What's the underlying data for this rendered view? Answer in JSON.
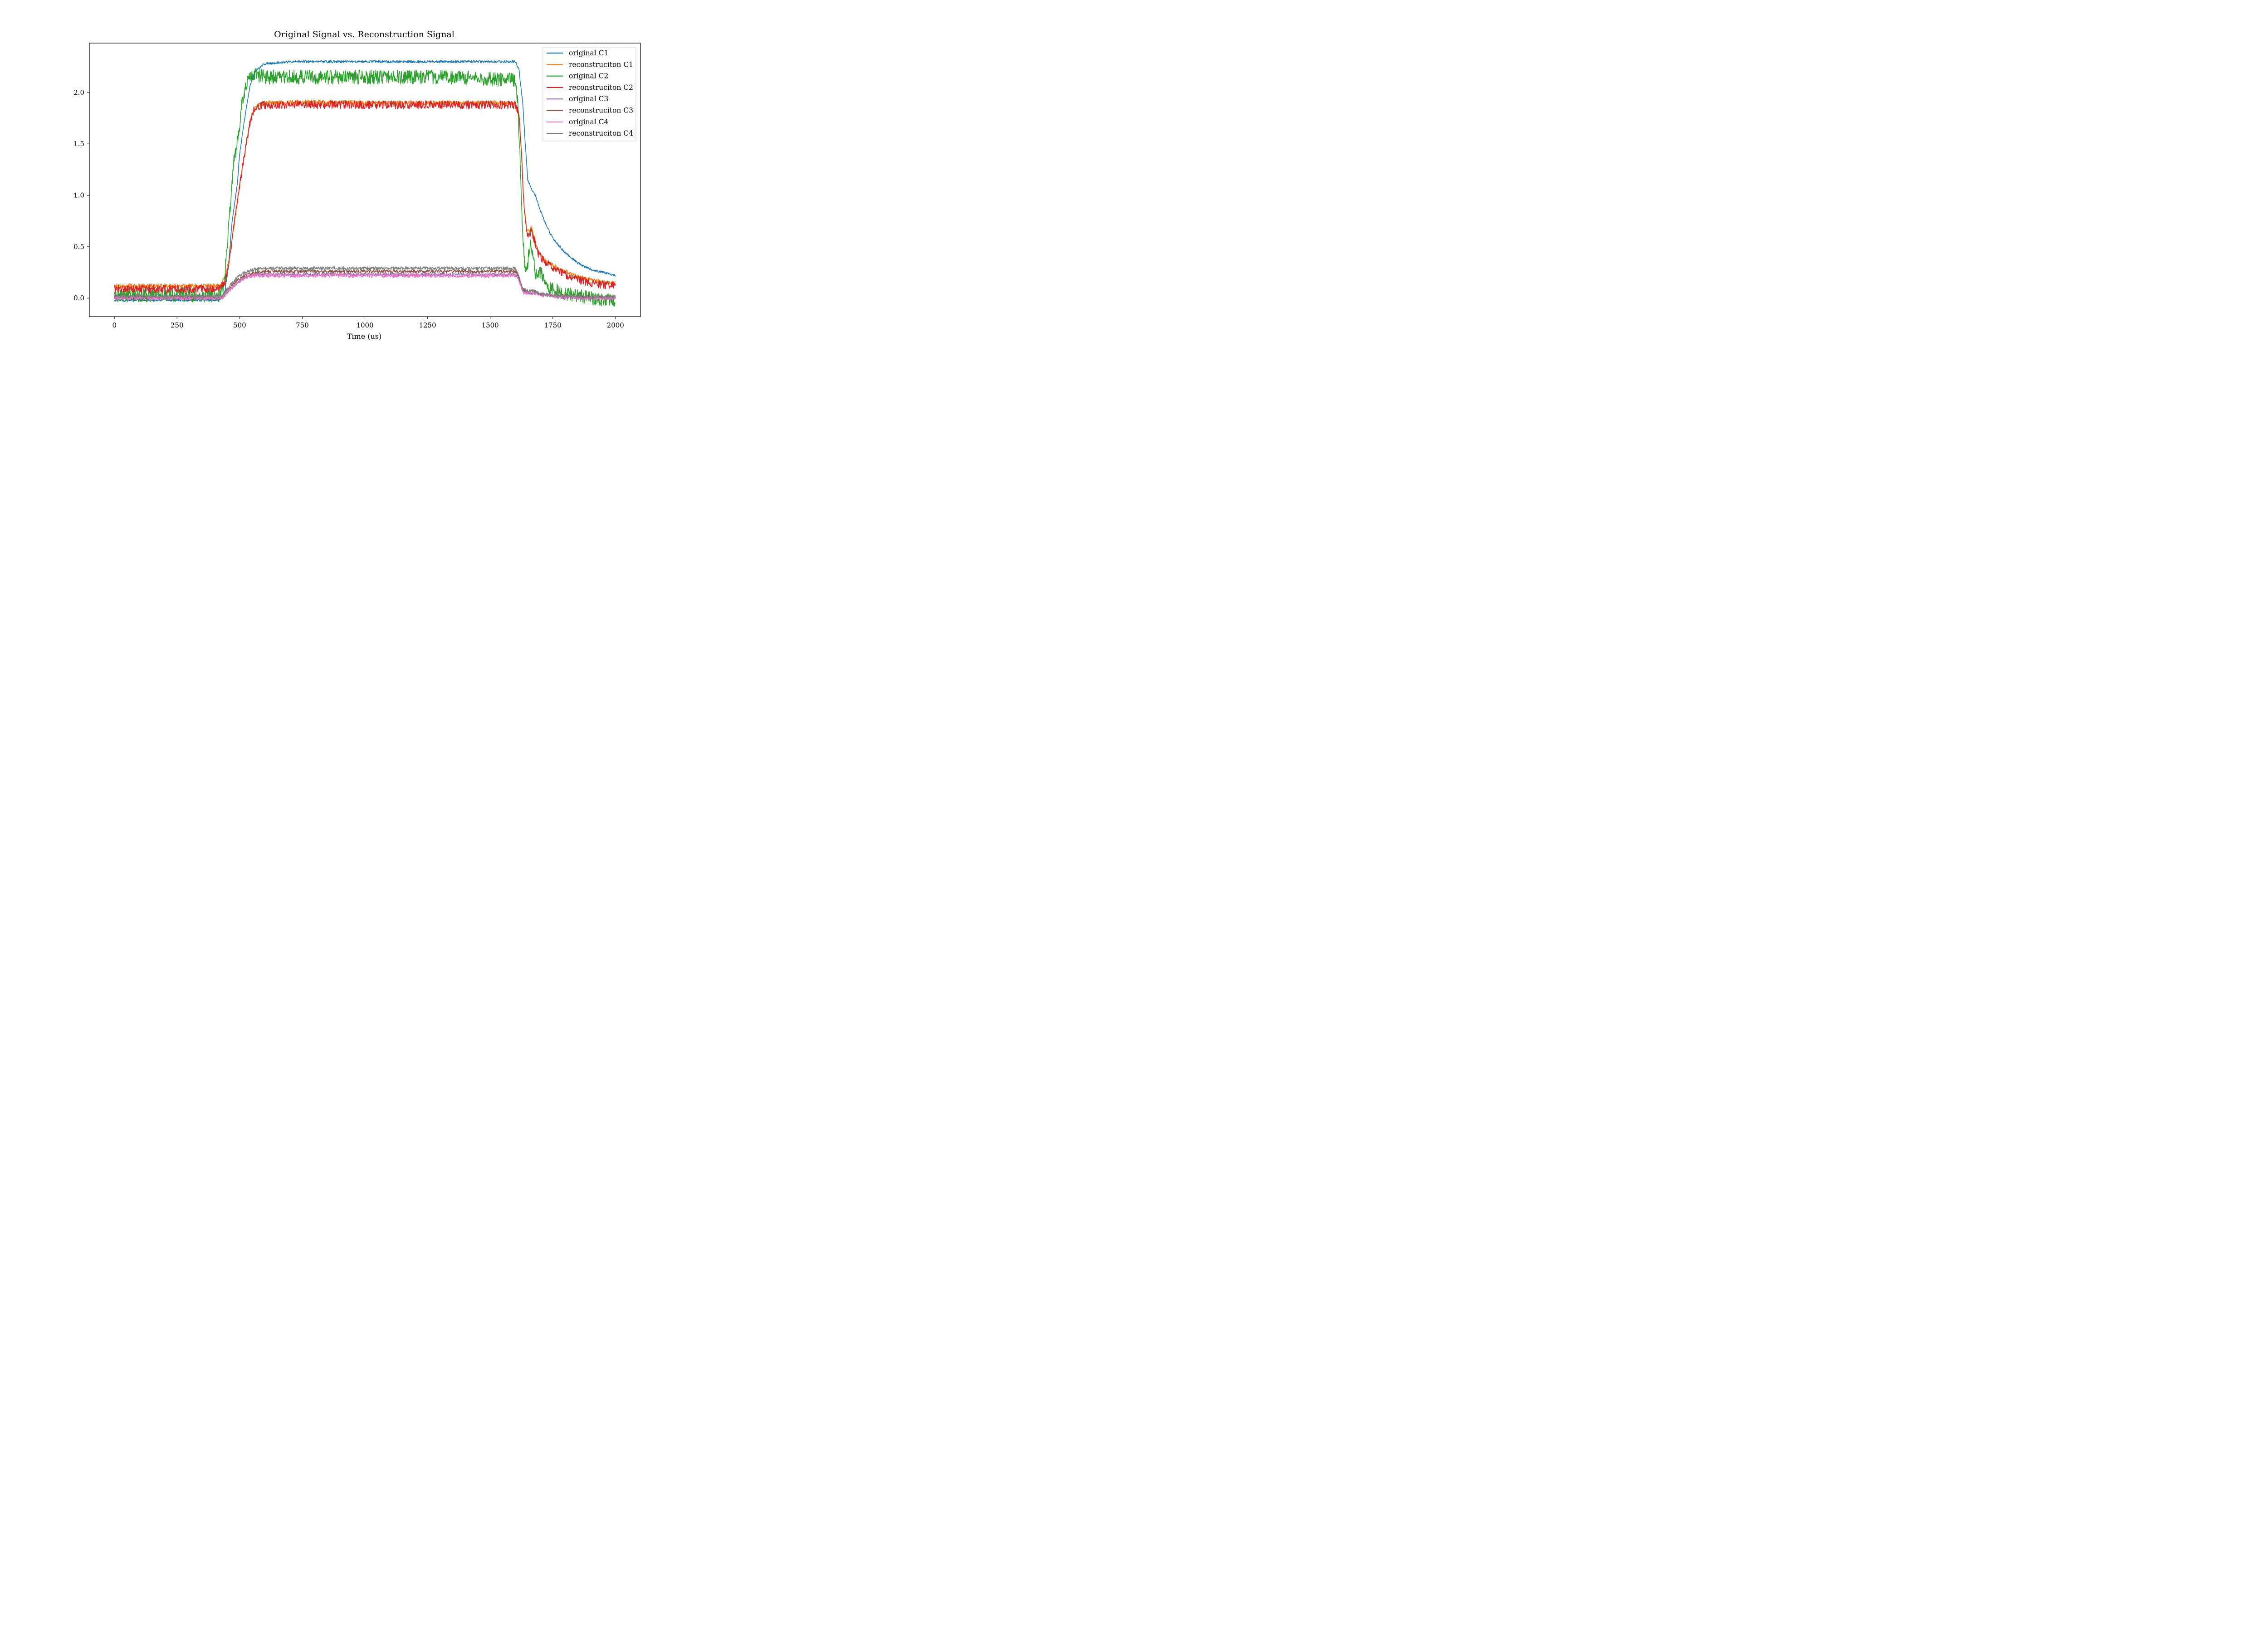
{
  "chart_data": {
    "type": "line",
    "title": "Original Signal vs. Reconstruction Signal",
    "xlabel": "Time (us)",
    "ylabel": "",
    "xlim": [
      -100,
      2100
    ],
    "ylim": [
      -0.18,
      2.48
    ],
    "x_ticks": [
      0,
      250,
      500,
      750,
      1000,
      1250,
      1500,
      1750,
      2000
    ],
    "x_tick_labels": [
      "0",
      "250",
      "500",
      "750",
      "1000",
      "1250",
      "1500",
      "1750",
      "2000"
    ],
    "y_ticks": [
      0.0,
      0.5,
      1.0,
      1.5,
      2.0
    ],
    "y_tick_labels": [
      "0.0",
      "0.5",
      "1.0",
      "1.5",
      "2.0"
    ],
    "grid": false,
    "legend_position": "top-right",
    "series": [
      {
        "name": "original C1",
        "color": "#1f77b4",
        "points": [
          [
            0,
            -0.02
          ],
          [
            420,
            -0.02
          ],
          [
            440,
            0.05
          ],
          [
            455,
            0.3
          ],
          [
            470,
            0.75
          ],
          [
            490,
            1.1
          ],
          [
            500,
            1.4
          ],
          [
            520,
            1.75
          ],
          [
            540,
            2.05
          ],
          [
            560,
            2.2
          ],
          [
            600,
            2.28
          ],
          [
            700,
            2.3
          ],
          [
            1000,
            2.3
          ],
          [
            1300,
            2.3
          ],
          [
            1600,
            2.3
          ],
          [
            1615,
            2.22
          ],
          [
            1630,
            1.9
          ],
          [
            1640,
            1.5
          ],
          [
            1650,
            1.15
          ],
          [
            1665,
            1.06
          ],
          [
            1680,
            1.0
          ],
          [
            1700,
            0.85
          ],
          [
            1725,
            0.7
          ],
          [
            1750,
            0.58
          ],
          [
            1800,
            0.44
          ],
          [
            1850,
            0.34
          ],
          [
            1900,
            0.28
          ],
          [
            1950,
            0.25
          ],
          [
            2000,
            0.22
          ]
        ]
      },
      {
        "name": "reconstruciton C1",
        "color": "#ff7f0e",
        "points": [
          [
            0,
            0.12
          ],
          [
            420,
            0.12
          ],
          [
            440,
            0.2
          ],
          [
            460,
            0.4
          ],
          [
            480,
            0.75
          ],
          [
            500,
            1.1
          ],
          [
            520,
            1.4
          ],
          [
            540,
            1.7
          ],
          [
            560,
            1.86
          ],
          [
            600,
            1.9
          ],
          [
            800,
            1.91
          ],
          [
            1000,
            1.9
          ],
          [
            1300,
            1.9
          ],
          [
            1600,
            1.9
          ],
          [
            1615,
            1.8
          ],
          [
            1625,
            1.4
          ],
          [
            1635,
            0.9
          ],
          [
            1645,
            0.68
          ],
          [
            1655,
            0.65
          ],
          [
            1665,
            0.68
          ],
          [
            1675,
            0.6
          ],
          [
            1690,
            0.46
          ],
          [
            1710,
            0.39
          ],
          [
            1750,
            0.32
          ],
          [
            1800,
            0.26
          ],
          [
            1850,
            0.21
          ],
          [
            1900,
            0.18
          ],
          [
            1950,
            0.16
          ],
          [
            2000,
            0.15
          ]
        ]
      },
      {
        "name": "original C2",
        "color": "#2ca02c",
        "points": [
          [
            0,
            0.03
          ],
          [
            420,
            0.03
          ],
          [
            435,
            0.1
          ],
          [
            450,
            0.5
          ],
          [
            465,
            1.0
          ],
          [
            475,
            1.3
          ],
          [
            490,
            1.5
          ],
          [
            500,
            1.7
          ],
          [
            510,
            1.9
          ],
          [
            525,
            2.05
          ],
          [
            540,
            2.15
          ],
          [
            560,
            2.18
          ],
          [
            600,
            2.15
          ],
          [
            1000,
            2.15
          ],
          [
            1300,
            2.15
          ],
          [
            1600,
            2.12
          ],
          [
            1610,
            1.9
          ],
          [
            1620,
            1.3
          ],
          [
            1630,
            0.6
          ],
          [
            1640,
            0.25
          ],
          [
            1650,
            0.35
          ],
          [
            1660,
            0.55
          ],
          [
            1670,
            0.45
          ],
          [
            1680,
            0.22
          ],
          [
            1700,
            0.28
          ],
          [
            1710,
            0.18
          ],
          [
            1730,
            0.1
          ],
          [
            1760,
            0.07
          ],
          [
            1800,
            0.05
          ],
          [
            1850,
            0.02
          ],
          [
            1900,
            0.0
          ],
          [
            1950,
            -0.01
          ],
          [
            2000,
            -0.01
          ]
        ]
      },
      {
        "name": "reconstruciton C2",
        "color": "#d62728",
        "points": [
          [
            0,
            0.09
          ],
          [
            420,
            0.09
          ],
          [
            440,
            0.15
          ],
          [
            460,
            0.4
          ],
          [
            480,
            0.75
          ],
          [
            500,
            1.1
          ],
          [
            520,
            1.4
          ],
          [
            540,
            1.7
          ],
          [
            560,
            1.85
          ],
          [
            600,
            1.88
          ],
          [
            800,
            1.88
          ],
          [
            1000,
            1.88
          ],
          [
            1300,
            1.88
          ],
          [
            1600,
            1.88
          ],
          [
            1615,
            1.8
          ],
          [
            1625,
            1.4
          ],
          [
            1635,
            0.9
          ],
          [
            1645,
            0.65
          ],
          [
            1655,
            0.62
          ],
          [
            1665,
            0.66
          ],
          [
            1675,
            0.58
          ],
          [
            1690,
            0.44
          ],
          [
            1710,
            0.37
          ],
          [
            1750,
            0.3
          ],
          [
            1800,
            0.23
          ],
          [
            1850,
            0.18
          ],
          [
            1900,
            0.15
          ],
          [
            1950,
            0.13
          ],
          [
            2000,
            0.12
          ]
        ]
      },
      {
        "name": "original C3",
        "color": "#9467bd",
        "points": [
          [
            0,
            0.0
          ],
          [
            430,
            0.0
          ],
          [
            460,
            0.08
          ],
          [
            490,
            0.15
          ],
          [
            520,
            0.2
          ],
          [
            560,
            0.23
          ],
          [
            600,
            0.23
          ],
          [
            1000,
            0.23
          ],
          [
            1300,
            0.23
          ],
          [
            1600,
            0.23
          ],
          [
            1615,
            0.18
          ],
          [
            1630,
            0.07
          ],
          [
            1650,
            0.05
          ],
          [
            1670,
            0.05
          ],
          [
            1700,
            0.03
          ],
          [
            1750,
            0.02
          ],
          [
            1800,
            0.01
          ],
          [
            1900,
            0.0
          ],
          [
            2000,
            0.0
          ]
        ]
      },
      {
        "name": "reconstruciton C3",
        "color": "#8c564b",
        "points": [
          [
            0,
            0.01
          ],
          [
            430,
            0.01
          ],
          [
            460,
            0.1
          ],
          [
            490,
            0.17
          ],
          [
            520,
            0.22
          ],
          [
            560,
            0.25
          ],
          [
            600,
            0.26
          ],
          [
            1000,
            0.26
          ],
          [
            1300,
            0.26
          ],
          [
            1600,
            0.26
          ],
          [
            1615,
            0.2
          ],
          [
            1630,
            0.08
          ],
          [
            1650,
            0.06
          ],
          [
            1670,
            0.07
          ],
          [
            1700,
            0.04
          ],
          [
            1750,
            0.03
          ],
          [
            1800,
            0.02
          ],
          [
            1900,
            0.01
          ],
          [
            2000,
            0.01
          ]
        ]
      },
      {
        "name": "original C4",
        "color": "#e377c2",
        "points": [
          [
            0,
            0.0
          ],
          [
            430,
            0.0
          ],
          [
            460,
            0.08
          ],
          [
            490,
            0.15
          ],
          [
            520,
            0.2
          ],
          [
            560,
            0.22
          ],
          [
            600,
            0.22
          ],
          [
            1000,
            0.22
          ],
          [
            1300,
            0.22
          ],
          [
            1600,
            0.22
          ],
          [
            1615,
            0.17
          ],
          [
            1630,
            0.06
          ],
          [
            1650,
            0.05
          ],
          [
            1670,
            0.05
          ],
          [
            1700,
            0.03
          ],
          [
            1750,
            0.02
          ],
          [
            1800,
            0.01
          ],
          [
            1900,
            0.0
          ],
          [
            2000,
            0.0
          ]
        ]
      },
      {
        "name": "reconstruciton C4",
        "color": "#7f7f7f",
        "points": [
          [
            0,
            0.02
          ],
          [
            430,
            0.02
          ],
          [
            460,
            0.12
          ],
          [
            490,
            0.2
          ],
          [
            520,
            0.25
          ],
          [
            560,
            0.28
          ],
          [
            600,
            0.29
          ],
          [
            1000,
            0.29
          ],
          [
            1300,
            0.29
          ],
          [
            1600,
            0.29
          ],
          [
            1615,
            0.22
          ],
          [
            1630,
            0.09
          ],
          [
            1650,
            0.07
          ],
          [
            1665,
            0.08
          ],
          [
            1700,
            0.04
          ],
          [
            1750,
            0.03
          ],
          [
            1800,
            0.02
          ],
          [
            1900,
            0.01
          ],
          [
            2000,
            0.01
          ]
        ]
      }
    ]
  }
}
